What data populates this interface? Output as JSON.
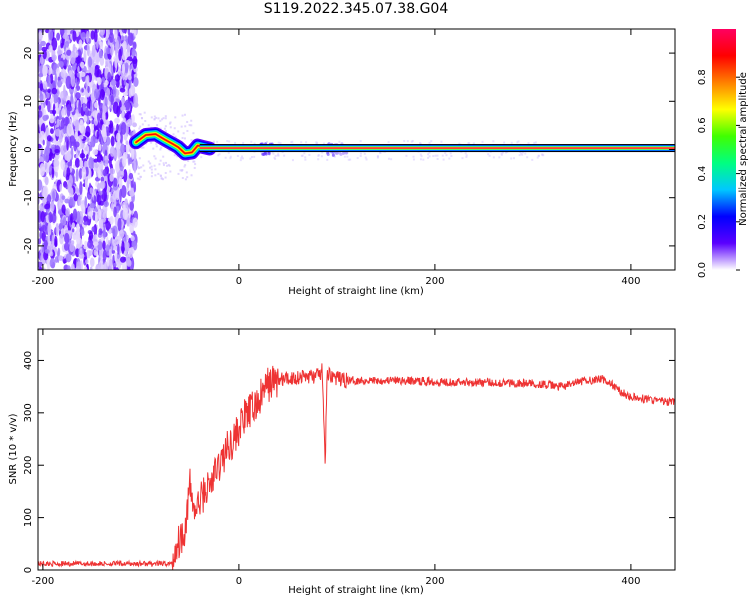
{
  "title": "S119.2022.345.07.38.G04",
  "chart_data": [
    {
      "type": "heatmap",
      "xlabel": "Height of straight line (km)",
      "ylabel": "Frequency (Hz)",
      "xlim": [
        -205,
        445
      ],
      "ylim": [
        -25,
        25
      ],
      "xticks": [
        -200,
        0,
        200,
        400
      ],
      "yticks": [
        -20,
        -10,
        0,
        10,
        20
      ],
      "colorbar": {
        "label": "Normalized spectral amplitude",
        "range": [
          0,
          1
        ],
        "ticks": [
          "0.0",
          "0.2",
          "0.4",
          "0.6",
          "0.8"
        ],
        "colors": [
          "#ffffff",
          "#5a00ff",
          "#0000ff",
          "#00c8ff",
          "#00ff80",
          "#40ff00",
          "#ffff00",
          "#ff8000",
          "#ff0000",
          "#ff0060"
        ]
      },
      "features": {
        "noise_region_x": [
          -205,
          -105
        ],
        "carrier_frequency_hz": 0.3,
        "wiggle_points": [
          [
            -105,
            1.5
          ],
          [
            -95,
            3.0
          ],
          [
            -85,
            3.2
          ],
          [
            -75,
            2.0
          ],
          [
            -68,
            1.2
          ],
          [
            -62,
            0.5
          ],
          [
            -55,
            -0.8
          ],
          [
            -48,
            -0.6
          ],
          [
            -42,
            0.8
          ],
          [
            -36,
            0.5
          ],
          [
            -30,
            0.2
          ]
        ]
      }
    },
    {
      "type": "line",
      "xlabel": "Height of straight line (km)",
      "ylabel": "SNR (10 * v/v)",
      "xlim": [
        -205,
        445
      ],
      "ylim": [
        0,
        460
      ],
      "xticks": [
        -200,
        0,
        200,
        400
      ],
      "yticks": [
        0,
        100,
        200,
        300,
        400
      ],
      "line_color": "#ee3333",
      "series": [
        {
          "x": [
            -205,
            -150,
            -100,
            -68,
            -65,
            -60,
            -55,
            -50,
            -45,
            -40,
            -35,
            -30,
            -25,
            -20,
            -15,
            -10,
            -5,
            0,
            5,
            10,
            15,
            20,
            25,
            30,
            35,
            40,
            50,
            60,
            70,
            80,
            85,
            88,
            90,
            95,
            100,
            110,
            150,
            200,
            250,
            300,
            330,
            350,
            370,
            380,
            390,
            400,
            420,
            440,
            445
          ],
          "y": [
            12,
            12,
            12,
            12,
            40,
            60,
            80,
            160,
            110,
            130,
            150,
            160,
            180,
            200,
            220,
            240,
            250,
            270,
            290,
            300,
            310,
            320,
            340,
            355,
            360,
            362,
            365,
            368,
            370,
            370,
            380,
            200,
            375,
            372,
            365,
            362,
            362,
            360,
            358,
            356,
            350,
            360,
            365,
            355,
            340,
            330,
            325,
            320,
            322
          ]
        }
      ]
    }
  ]
}
